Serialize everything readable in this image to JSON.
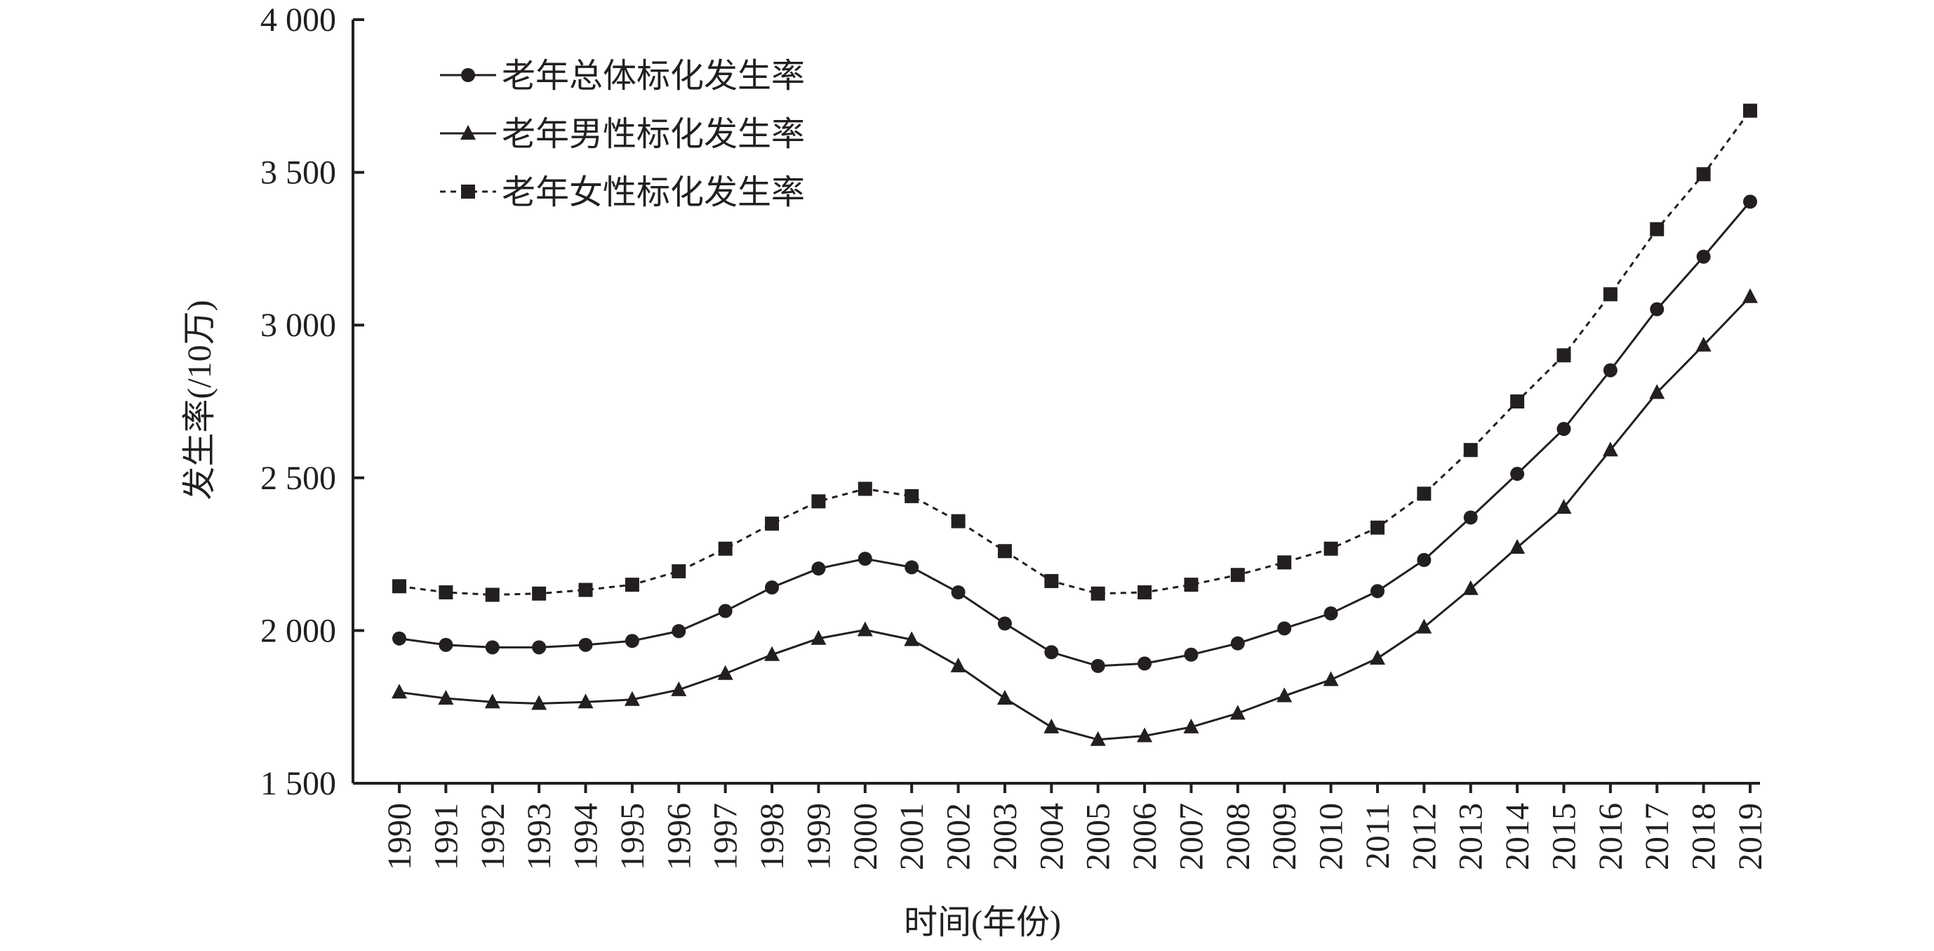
{
  "chart_data": {
    "type": "line",
    "x_label": "时间(年份)",
    "y_label": "发生率(/10万)",
    "categories": [
      "1990",
      "1991",
      "1992",
      "1993",
      "1994",
      "1995",
      "1996",
      "1997",
      "1998",
      "1999",
      "2000",
      "2001",
      "2002",
      "2003",
      "2004",
      "2005",
      "2006",
      "2007",
      "2008",
      "2009",
      "2010",
      "2011",
      "2012",
      "2013",
      "2014",
      "2015",
      "2016",
      "2017",
      "2018",
      "2019"
    ],
    "series": [
      {
        "name": "老年总体标化发生率",
        "color": "#231f20",
        "marker": "circle",
        "dash": "solid",
        "values": [
          1974,
          1953,
          1945,
          1945,
          1953,
          1966,
          1998,
          2064,
          2141,
          2203,
          2235,
          2207,
          2125,
          2023,
          1929,
          1884,
          1892,
          1921,
          1958,
          2007,
          2056,
          2129,
          2231,
          2370,
          2513,
          2660,
          2852,
          3052,
          3224,
          3404
        ]
      },
      {
        "name": "老年男性标化发生率",
        "color": "#231f20",
        "marker": "triangle",
        "dash": "solid",
        "values": [
          1798,
          1778,
          1766,
          1761,
          1766,
          1774,
          1806,
          1859,
          1921,
          1974,
          2002,
          1970,
          1884,
          1778,
          1684,
          1643,
          1655,
          1684,
          1729,
          1786,
          1839,
          1909,
          2011,
          2137,
          2272,
          2403,
          2591,
          2779,
          2934,
          3093
        ]
      },
      {
        "name": "老年女性标化发生率",
        "color": "#231f20",
        "marker": "square",
        "dash": "dashed",
        "values": [
          2145,
          2125,
          2117,
          2121,
          2133,
          2150,
          2194,
          2268,
          2350,
          2423,
          2464,
          2440,
          2358,
          2260,
          2162,
          2121,
          2125,
          2150,
          2182,
          2223,
          2268,
          2337,
          2448,
          2591,
          2750,
          2901,
          3101,
          3314,
          3494,
          3702
        ]
      }
    ],
    "ylim": [
      1500,
      4000
    ],
    "yticks": [
      {
        "value": 1500,
        "label": "1 500"
      },
      {
        "value": 2000,
        "label": "2 000"
      },
      {
        "value": 2500,
        "label": "2 500"
      },
      {
        "value": 3000,
        "label": "3 000"
      },
      {
        "value": 3500,
        "label": "3 500"
      },
      {
        "value": 4000,
        "label": "4 000"
      }
    ],
    "grid": false,
    "legend": "upper-left"
  }
}
